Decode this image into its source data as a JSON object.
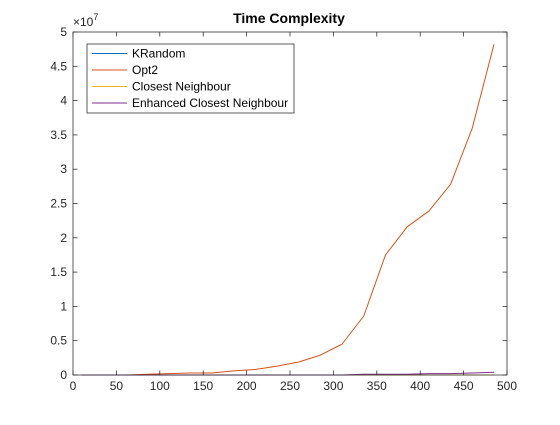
{
  "chart_data": {
    "type": "line",
    "title": "Time Complexity",
    "xlabel": "",
    "ylabel": "",
    "xlim": [
      0,
      500
    ],
    "ylim": [
      0,
      5
    ],
    "y_exponent_label": "×10",
    "y_exponent_power": "7",
    "x_ticks": [
      "0",
      "50",
      "100",
      "150",
      "200",
      "250",
      "300",
      "350",
      "400",
      "450",
      "500"
    ],
    "y_ticks": [
      "0",
      "0.5",
      "1",
      "1.5",
      "2",
      "2.5",
      "3",
      "3.5",
      "4",
      "4.5",
      "5"
    ],
    "grid": false,
    "legend_position": "top-left",
    "series": [
      {
        "name": "KRandom",
        "color": "#0072BD",
        "x": [
          10,
          35,
          60,
          85,
          110,
          135,
          160,
          185,
          210,
          235,
          260,
          285,
          310,
          335,
          360,
          385,
          410,
          435,
          460,
          485
        ],
        "y": [
          0.0,
          0.0,
          0.0,
          0.0,
          0.0,
          0.0,
          0.0,
          0.0,
          0.0,
          0.0,
          0.0,
          0.0,
          0.0,
          0.0,
          0.0,
          0.0,
          0.0,
          0.0,
          0.0,
          0.0
        ]
      },
      {
        "name": "Opt2",
        "color": "#D95319",
        "x": [
          10,
          35,
          60,
          85,
          110,
          135,
          160,
          185,
          210,
          235,
          260,
          285,
          310,
          335,
          360,
          385,
          410,
          435,
          460,
          485
        ],
        "y": [
          0.0,
          0.0,
          0.0,
          0.01,
          0.02,
          0.03,
          0.03,
          0.06,
          0.08,
          0.13,
          0.19,
          0.29,
          0.45,
          0.86,
          1.75,
          2.16,
          2.39,
          2.78,
          3.6,
          4.82
        ]
      },
      {
        "name": "Closest Neighbour",
        "color": "#EDB120",
        "x": [
          10,
          35,
          60,
          85,
          110,
          135,
          160,
          185,
          210,
          235,
          260,
          285,
          310,
          335,
          360,
          385,
          410,
          435,
          460,
          485
        ],
        "y": [
          0.0,
          0.0,
          0.0,
          0.0,
          0.0,
          0.0,
          0.0,
          0.0,
          0.0,
          0.0,
          0.0,
          0.0,
          0.0,
          0.0,
          0.0,
          0.0,
          0.0,
          0.0,
          0.0,
          0.0
        ]
      },
      {
        "name": "Enhanced Closest Neighbour",
        "color": "#7E2F8E",
        "x": [
          10,
          35,
          60,
          85,
          110,
          135,
          160,
          185,
          210,
          235,
          260,
          285,
          310,
          335,
          360,
          385,
          410,
          435,
          460,
          485
        ],
        "y": [
          0.0,
          0.0,
          0.0,
          0.0,
          0.0,
          0.0,
          0.0,
          0.0,
          0.0,
          0.0,
          0.0,
          0.0,
          0.0,
          0.01,
          0.01,
          0.01,
          0.02,
          0.02,
          0.03,
          0.04
        ]
      }
    ]
  }
}
